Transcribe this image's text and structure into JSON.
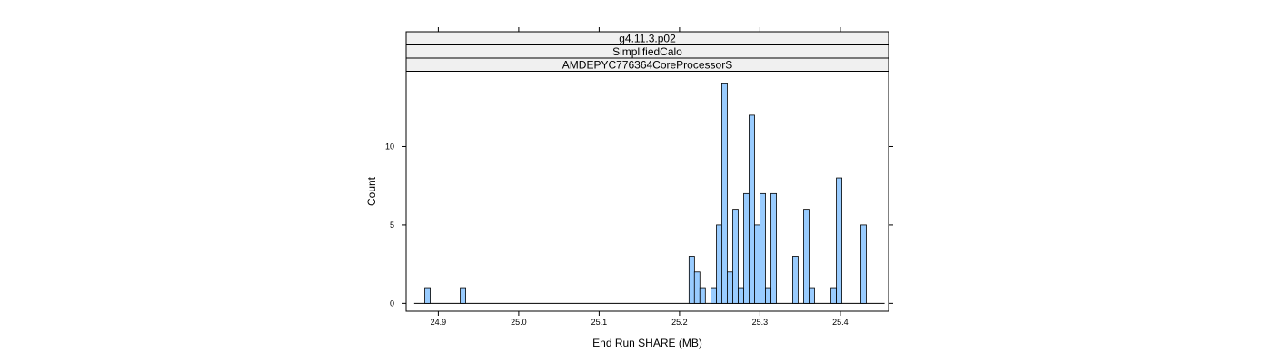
{
  "chart_data": {
    "type": "bar",
    "strips": [
      "g4.11.3.p02",
      "SimplifiedCalo",
      "AMDEPYC776364CoreProcessorS"
    ],
    "xlabel": "End Run SHARE (MB)",
    "ylabel": "Count",
    "xlim": [
      24.86,
      25.46
    ],
    "ylim": [
      -0.5,
      14.8
    ],
    "xticks": [
      24.9,
      25.0,
      25.1,
      25.2,
      25.3,
      25.4
    ],
    "xtick_labels": [
      "24.9",
      "25.0",
      "25.1",
      "25.2",
      "25.3",
      "25.4"
    ],
    "yticks": [
      0,
      5,
      10
    ],
    "ytick_labels": [
      "0",
      "5",
      "10"
    ],
    "bin_width": 0.0068,
    "baseline_range": [
      24.87,
      25.455
    ],
    "bins": [
      {
        "x": 24.8866,
        "count": 1
      },
      {
        "x": 24.9307,
        "count": 1
      },
      {
        "x": 25.2152,
        "count": 3
      },
      {
        "x": 25.2219,
        "count": 2
      },
      {
        "x": 25.2287,
        "count": 1
      },
      {
        "x": 25.2425,
        "count": 1
      },
      {
        "x": 25.2493,
        "count": 5
      },
      {
        "x": 25.256,
        "count": 14
      },
      {
        "x": 25.2628,
        "count": 2
      },
      {
        "x": 25.2696,
        "count": 6
      },
      {
        "x": 25.2764,
        "count": 1
      },
      {
        "x": 25.2832,
        "count": 7
      },
      {
        "x": 25.2899,
        "count": 12
      },
      {
        "x": 25.2967,
        "count": 5
      },
      {
        "x": 25.3035,
        "count": 7
      },
      {
        "x": 25.3103,
        "count": 1
      },
      {
        "x": 25.3171,
        "count": 7
      },
      {
        "x": 25.3441,
        "count": 3
      },
      {
        "x": 25.3577,
        "count": 6
      },
      {
        "x": 25.3645,
        "count": 1
      },
      {
        "x": 25.3917,
        "count": 1
      },
      {
        "x": 25.3985,
        "count": 8
      },
      {
        "x": 25.4289,
        "count": 5
      }
    ],
    "bar_fill": "#99ccff",
    "bar_stroke": "#000000",
    "strip_fill": "#f0f0f0"
  }
}
